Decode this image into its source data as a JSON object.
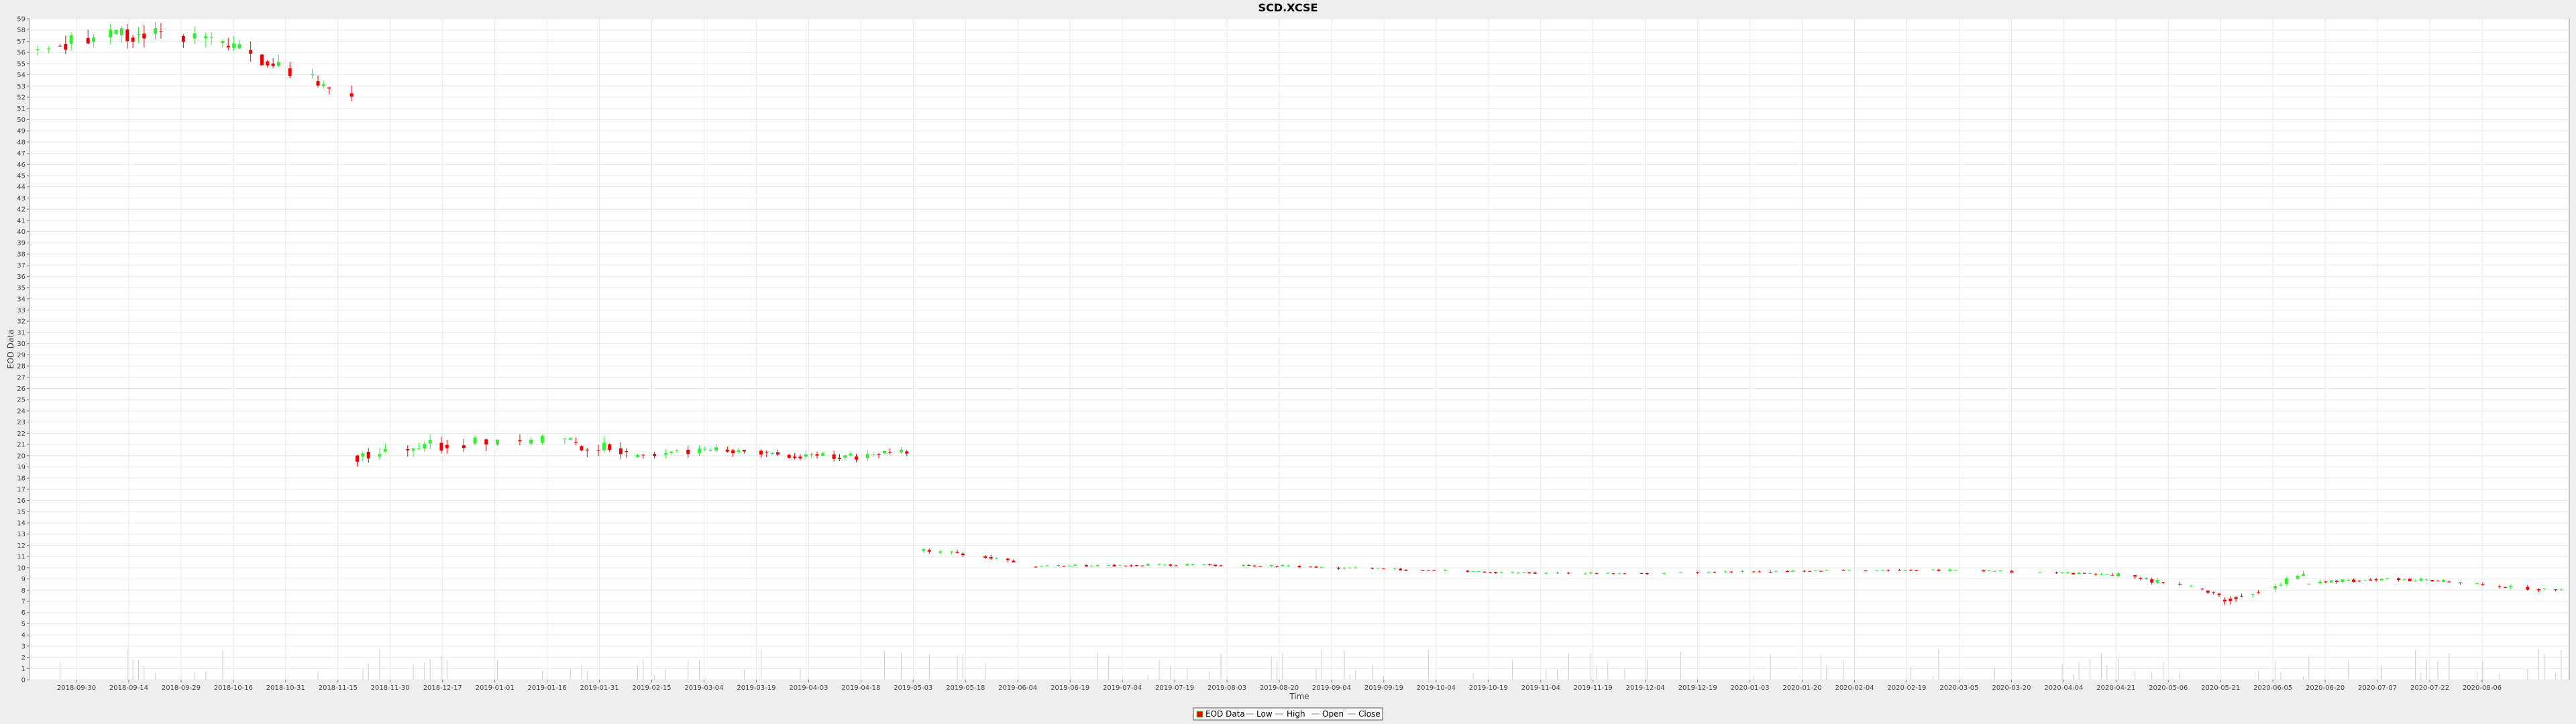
{
  "chart_data": {
    "type": "candlestick",
    "title": "SCD.XCSE",
    "xlabel": "Time",
    "ylabel": "EOD Data",
    "ylim": [
      0,
      59
    ],
    "grid": true,
    "legend_position": "bottom-center",
    "legend": [
      "EOD Data",
      "Low",
      "High",
      "Open",
      "Close"
    ],
    "colors": {
      "up": "#33ee33",
      "down": "#ee0000",
      "volume": "#cccccc",
      "grid": "#e8e8e8",
      "plot_bg": "#ffffff"
    },
    "x_ticks": [
      "2018-09-30",
      "2018-09-14",
      "2018-09-29",
      "2018-10-16",
      "2018-10-31",
      "2018-11-15",
      "2018-11-30",
      "2018-12-17",
      "2019-01-01",
      "2019-01-16",
      "2019-01-31",
      "2019-02-15",
      "2019-03-04",
      "2019-03-19",
      "2019-04-03",
      "2019-04-18",
      "2019-05-03",
      "2019-05-18",
      "2019-06-04",
      "2019-06-19",
      "2019-07-04",
      "2019-07-19",
      "2019-08-03",
      "2019-08-20",
      "2019-09-04",
      "2019-09-19",
      "2019-10-04",
      "2019-10-19",
      "2019-11-04",
      "2019-11-19",
      "2019-12-04",
      "2019-12-19",
      "2020-01-03",
      "2020-01-20",
      "2020-02-04",
      "2020-02-19",
      "2020-03-05",
      "2020-03-20",
      "2020-04-04",
      "2020-04-21",
      "2020-05-06",
      "2020-05-21",
      "2020-06-05",
      "2020-06-20",
      "2020-07-07",
      "2020-07-22",
      "2020-08-06"
    ],
    "y_ticks": [
      0,
      1,
      2,
      3,
      4,
      5,
      6,
      7,
      8,
      9,
      10,
      11,
      12,
      13,
      14,
      15,
      16,
      17,
      18,
      19,
      20,
      21,
      22,
      23,
      24,
      25,
      26,
      27,
      28,
      29,
      30,
      31,
      32,
      33,
      34,
      35,
      36,
      37,
      38,
      39,
      40,
      41,
      42,
      43,
      44,
      45,
      46,
      47,
      48,
      49,
      50,
      51,
      52,
      53,
      54,
      55,
      56,
      57,
      58,
      59
    ],
    "segments": [
      {
        "day_start": 0,
        "day_end": 56,
        "start_price": 56.2,
        "end_price": 53.6,
        "shape": 1.2,
        "amplitude": 2.4,
        "volatility": 0.9
      },
      {
        "day_start": 57,
        "day_end": 105,
        "start_price": 20.0,
        "end_price": 19.5,
        "shape": 0.8,
        "amplitude": 1.6,
        "volatility": 0.7
      },
      {
        "day_start": 106,
        "day_end": 157,
        "start_price": 19.8,
        "end_price": 20.6,
        "shape": 2.0,
        "amplitude": 0.5,
        "volatility": 0.4
      },
      {
        "day_start": 158,
        "day_end": 176,
        "start_price": 11.5,
        "end_price": 10.2,
        "shape": 0.5,
        "amplitude": 0.3,
        "volatility": 0.25
      },
      {
        "day_start": 177,
        "day_end": 369,
        "start_price": 10.1,
        "end_price": 9.4,
        "shape": 3.0,
        "amplitude": 0.25,
        "volatility": 0.12
      },
      {
        "day_start": 370,
        "day_end": 389,
        "start_price": 9.4,
        "end_price": 7.0,
        "shape": 0.5,
        "amplitude": 0.6,
        "volatility": 0.25
      },
      {
        "day_start": 390,
        "day_end": 404,
        "start_price": 7.2,
        "end_price": 8.6,
        "shape": 0.2,
        "amplitude": 1.0,
        "volatility": 0.4
      },
      {
        "day_start": 405,
        "day_end": 450,
        "start_price": 8.6,
        "end_price": 8.5,
        "shape": 1.5,
        "amplitude": 0.4,
        "volatility": 0.2
      }
    ]
  }
}
